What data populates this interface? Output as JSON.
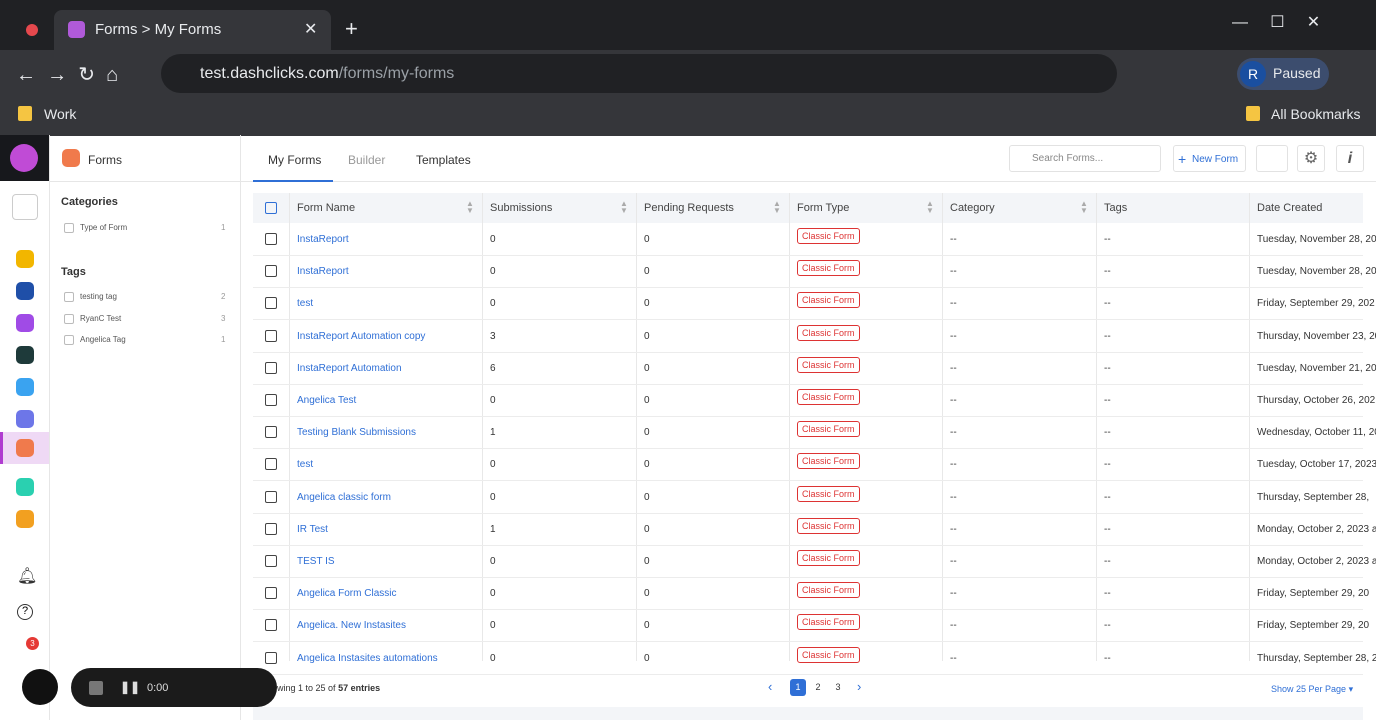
{
  "browser": {
    "tab_title": "Forms > My Forms",
    "url_host": "test.dashclicks.com",
    "url_path": "/forms/my-forms",
    "profile_initial": "R",
    "profile_status": "Paused",
    "bookmark": "Work",
    "all_bookmarks": "All Bookmarks"
  },
  "sidebar": {
    "title": "Forms",
    "categories_title": "Categories",
    "categories": [
      {
        "label": "Type of Form",
        "count": 1
      }
    ],
    "tags_title": "Tags",
    "tags": [
      {
        "label": "testing tag",
        "count": 2
      },
      {
        "label": "RyanC Test",
        "count": 3
      },
      {
        "label": "Angelica Tag",
        "count": 1
      }
    ],
    "cart_badge": 3
  },
  "header": {
    "tabs": [
      "My Forms",
      "Builder",
      "Templates"
    ],
    "search_placeholder": "Search Forms...",
    "new_form": "New Form"
  },
  "table": {
    "columns": [
      "Form Name",
      "Submissions",
      "Pending Requests",
      "Form Type",
      "Category",
      "Tags",
      "Date Created"
    ],
    "rows": [
      [
        "InstaReport",
        0,
        0,
        "Classic Form",
        "--",
        "--",
        "Tuesday, November 28, 20"
      ],
      [
        "InstaReport",
        0,
        0,
        "Classic Form",
        "--",
        "--",
        "Tuesday, November 28, 20"
      ],
      [
        "test",
        0,
        0,
        "Classic Form",
        "--",
        "--",
        "Friday, September 29, 202"
      ],
      [
        "InstaReport Automation copy",
        3,
        0,
        "Classic Form",
        "--",
        "--",
        "Thursday, November 23, 20"
      ],
      [
        "InstaReport Automation",
        6,
        0,
        "Classic Form",
        "--",
        "--",
        "Tuesday, November 21, 20"
      ],
      [
        "Angelica Test",
        0,
        0,
        "Classic Form",
        "--",
        "--",
        "Thursday, October 26, 202"
      ],
      [
        "Testing Blank Submissions",
        1,
        0,
        "Classic Form",
        "--",
        "--",
        "Wednesday, October 11, 20"
      ],
      [
        "test",
        0,
        0,
        "Classic Form",
        "--",
        "--",
        "Tuesday, October 17, 2023"
      ],
      [
        "Angelica classic form",
        0,
        0,
        "Classic Form",
        "--",
        "--",
        "Thursday, September 28,"
      ],
      [
        "IR Test",
        1,
        0,
        "Classic Form",
        "--",
        "--",
        "Monday, October 2, 2023 a"
      ],
      [
        "TEST IS",
        0,
        0,
        "Classic Form",
        "--",
        "--",
        "Monday, October 2, 2023 a"
      ],
      [
        "Angelica Form Classic",
        0,
        0,
        "Classic Form",
        "--",
        "--",
        "Friday, September 29, 20"
      ],
      [
        "Angelica. New Instasites",
        0,
        0,
        "Classic Form",
        "--",
        "--",
        "Friday, September 29, 20"
      ],
      [
        "Angelica Instasites automations",
        0,
        0,
        "Classic Form",
        "--",
        "--",
        "Thursday, September 28, 2"
      ]
    ]
  },
  "footer": {
    "showing": "wing 1 to 25 of",
    "entries": "57 entries",
    "pages": [
      1,
      2,
      3
    ],
    "per_page": "Show 25 Per Page"
  },
  "recorder": {
    "time": "0:00"
  }
}
